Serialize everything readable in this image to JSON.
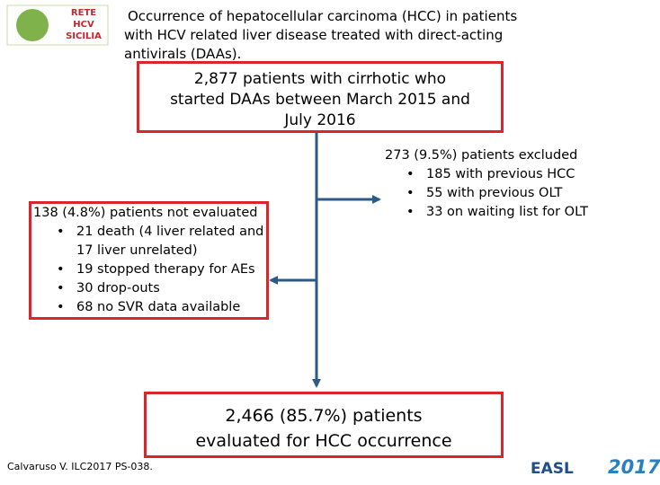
{
  "header": {
    "title": "Occurrence of hepatocellular carcinoma (HCC) in patients with HCV related liver disease treated with direct-acting antivirals (DAAs)."
  },
  "logo_left": {
    "lines": [
      "RETE",
      "HCV",
      "SICILIA"
    ]
  },
  "nodes": [
    {
      "label": "2,877 patients with cirrhotic who started DAAs between March 2015 and July 2016"
    },
    {
      "label": "273 (9.5%) patients excluded",
      "items": [
        "185 with previous HCC",
        "55 with previous OLT",
        "33 on waiting list for OLT"
      ]
    },
    {
      "label": "138 (4.8%) patients not evaluated",
      "items": [
        "21 death (4 liver related and 17 liver unrelated)",
        "19 stopped therapy for AEs",
        "30 drop-outs",
        "68 no SVR data available"
      ]
    },
    {
      "label": "2,466 (85.7%) patients evaluated for HCC occurrence"
    }
  ],
  "footer": {
    "citation": "Calvaruso V. ILC2017 PS-038."
  },
  "logo_right": {
    "name": "EASL",
    "year": "2017"
  }
}
